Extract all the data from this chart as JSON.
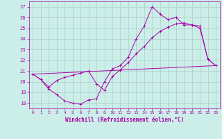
{
  "background_color": "#cceee8",
  "grid_color": "#aacccc",
  "line_color": "#aa00aa",
  "xlim": [
    -0.5,
    23.5
  ],
  "ylim": [
    17.5,
    27.5
  ],
  "yticks": [
    18,
    19,
    20,
    21,
    22,
    23,
    24,
    25,
    26,
    27
  ],
  "xticks": [
    0,
    1,
    2,
    3,
    4,
    5,
    6,
    7,
    8,
    9,
    10,
    11,
    12,
    13,
    14,
    15,
    16,
    17,
    18,
    19,
    20,
    21,
    22,
    23
  ],
  "xlabel": "Windchill (Refroidissement éolien,°C)",
  "line1_x": [
    0,
    1,
    2,
    3,
    4,
    5,
    6,
    7,
    8,
    9,
    10,
    11,
    12,
    13,
    14,
    15,
    16,
    17,
    18,
    19,
    20,
    21,
    22,
    23
  ],
  "line1_y": [
    20.7,
    20.2,
    19.3,
    18.8,
    18.2,
    18.0,
    17.9,
    18.3,
    18.4,
    20.0,
    21.2,
    21.5,
    22.3,
    24.0,
    25.2,
    27.0,
    26.3,
    25.8,
    26.0,
    25.3,
    25.3,
    25.0,
    22.1,
    21.5
  ],
  "line2_x": [
    0,
    1,
    2,
    3,
    4,
    5,
    6,
    7,
    8,
    9,
    10,
    11,
    12,
    13,
    14,
    15,
    16,
    17,
    18,
    19,
    20,
    21,
    22,
    23
  ],
  "line2_y": [
    20.7,
    20.2,
    19.5,
    20.1,
    20.4,
    20.6,
    20.8,
    21.0,
    19.8,
    19.2,
    20.5,
    21.1,
    21.8,
    22.6,
    23.3,
    24.1,
    24.7,
    25.1,
    25.4,
    25.5,
    25.3,
    25.2,
    22.1,
    21.5
  ],
  "line3_x": [
    0,
    23
  ],
  "line3_y": [
    20.7,
    21.5
  ]
}
